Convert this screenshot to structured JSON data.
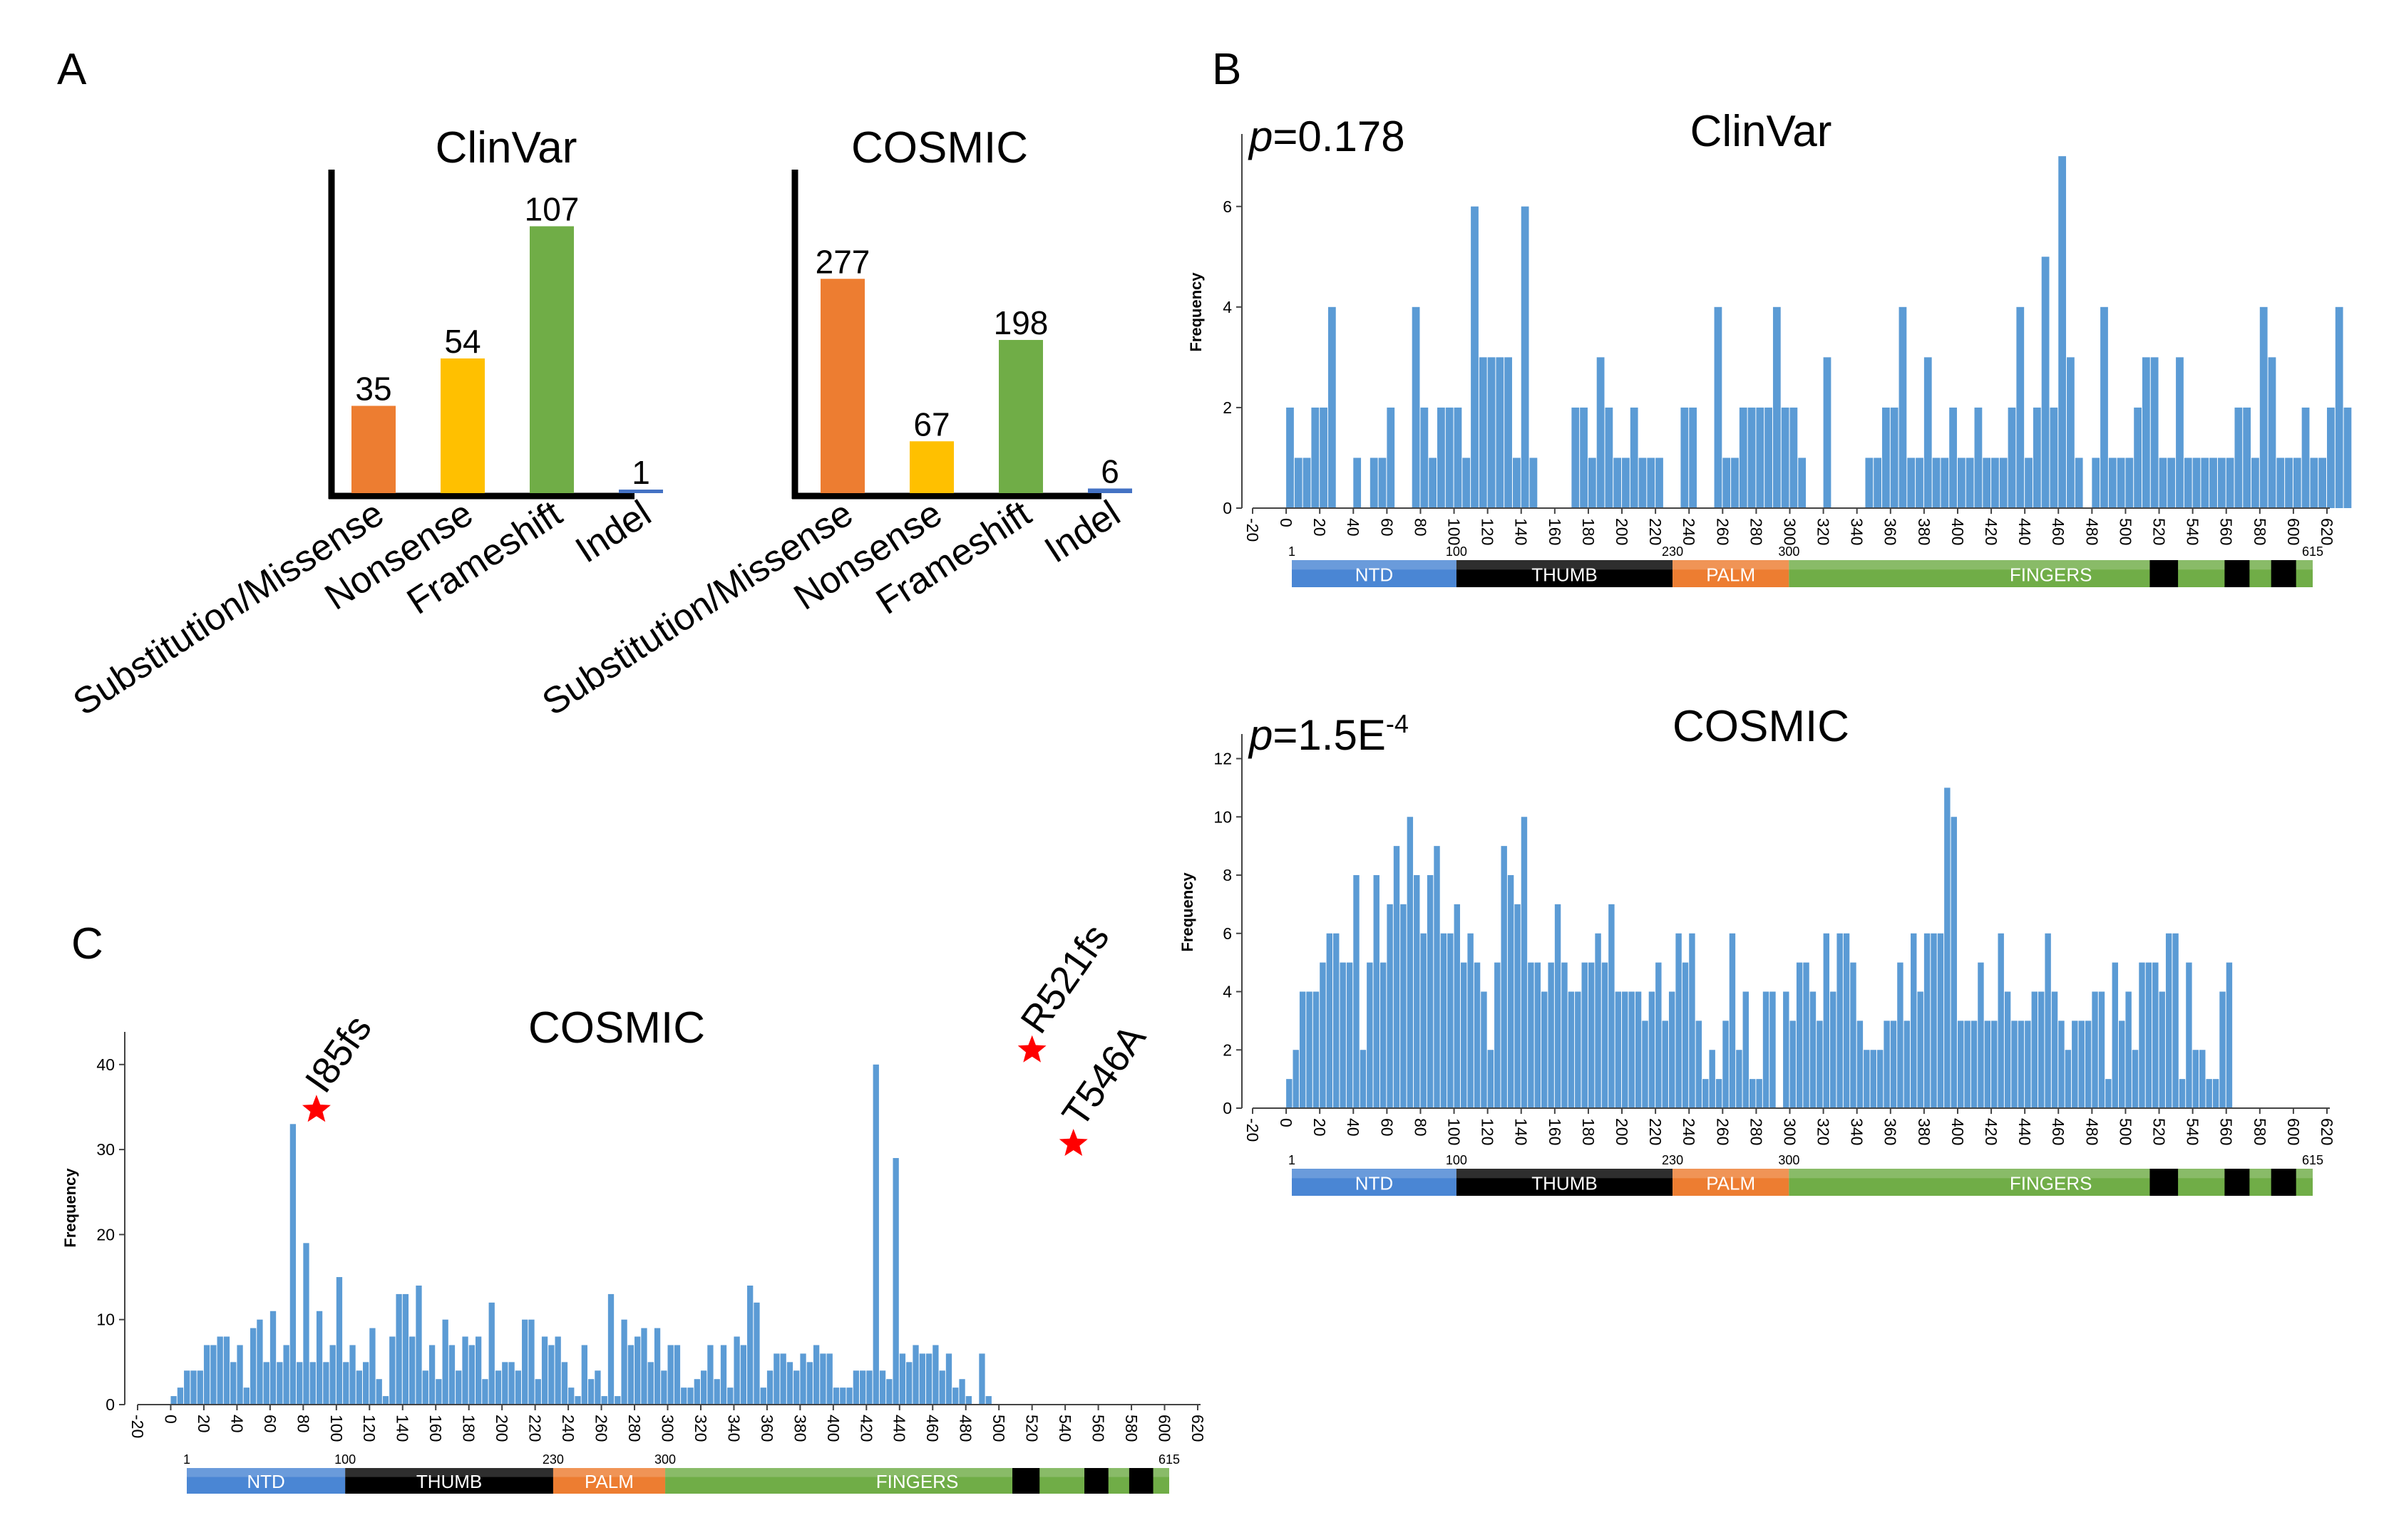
{
  "colors": {
    "bar_blue": "#5b9bd5",
    "substitution": "#ed7d31",
    "nonsense": "#ffc000",
    "frameshift": "#70ad47",
    "indel": "#4472c4",
    "domain_ntd": "#4a86d4",
    "domain_thumb": "#000000",
    "domain_palm": "#ed7d31",
    "domain_fingers": "#70ad47",
    "star": "#ff0000"
  },
  "panel_labels": {
    "a": "A",
    "b": "B",
    "c": "C"
  },
  "domain_bar": {
    "segments": [
      {
        "name": "NTD",
        "start": 1,
        "end": 100,
        "color": "#4a86d4"
      },
      {
        "name": "THUMB",
        "start": 100,
        "end": 230,
        "color": "#000000"
      },
      {
        "name": "PALM",
        "start": 230,
        "end": 300,
        "color": "#ed7d31"
      },
      {
        "name": "FINGERS",
        "start": 300,
        "end": 615,
        "color": "#70ad47"
      }
    ],
    "boundary_labels": [
      "1",
      "100",
      "230",
      "300",
      "615"
    ],
    "black_boxes": [
      [
        517,
        534
      ],
      [
        562,
        577
      ],
      [
        590,
        605
      ]
    ]
  },
  "chart_data": [
    {
      "id": "A-clinvar",
      "type": "bar",
      "title": "ClinVar",
      "categories": [
        "Substitution/Missense",
        "Nonsense",
        "Frameshift",
        "Indel"
      ],
      "values": [
        35,
        54,
        107,
        1
      ],
      "data_labels": [
        "35",
        "54",
        "107",
        "1"
      ],
      "colors": [
        "#ed7d31",
        "#ffc000",
        "#70ad47",
        "#4472c4"
      ],
      "ylim": [
        0,
        140
      ]
    },
    {
      "id": "A-cosmic",
      "type": "bar",
      "title": "COSMIC",
      "categories": [
        "Substitution/Missense",
        "Nonsense",
        "Frameshift",
        "Indel"
      ],
      "values": [
        277,
        67,
        198,
        6
      ],
      "data_labels": [
        "277",
        "67",
        "198",
        "6"
      ],
      "colors": [
        "#ed7d31",
        "#ffc000",
        "#70ad47",
        "#4472c4"
      ],
      "ylim": [
        0,
        350
      ]
    },
    {
      "id": "B-clinvar",
      "type": "bar",
      "title": "ClinVar",
      "p_value": {
        "italic": "p",
        "main": "=0.178",
        "sup": ""
      },
      "xlabel": "",
      "ylabel": "Frequency",
      "x_ticks": [
        "-20",
        "0",
        "20",
        "40",
        "60",
        "80",
        "100",
        "120",
        "140",
        "160",
        "180",
        "200",
        "220",
        "240",
        "260",
        "280",
        "300",
        "320",
        "340",
        "360",
        "380",
        "400",
        "420",
        "440",
        "460",
        "480",
        "500",
        "520",
        "540",
        "560",
        "580",
        "600",
        "620"
      ],
      "y_ticks": [
        "0",
        "2",
        "4",
        "6"
      ],
      "xlim": [
        -20,
        620
      ],
      "ylim": [
        0,
        7.3
      ],
      "bin_width": 5,
      "bin_start": 0,
      "values": [
        2,
        1,
        1,
        2,
        2,
        4,
        0,
        0,
        1,
        0,
        1,
        1,
        2,
        0,
        0,
        4,
        2,
        1,
        2,
        2,
        2,
        1,
        6,
        3,
        3,
        3,
        3,
        1,
        6,
        1,
        0,
        0,
        0,
        0,
        2,
        2,
        1,
        3,
        2,
        1,
        1,
        2,
        1,
        1,
        1,
        0,
        0,
        2,
        2,
        0,
        0,
        4,
        1,
        1,
        2,
        2,
        2,
        2,
        4,
        2,
        2,
        1,
        0,
        0,
        3,
        0,
        0,
        0,
        0,
        1,
        1,
        2,
        2,
        4,
        1,
        1,
        3,
        1,
        1,
        2,
        1,
        1,
        2,
        1,
        1,
        1,
        2,
        4,
        1,
        2,
        5,
        2,
        7,
        3,
        1,
        0,
        1,
        4,
        1,
        1,
        1,
        2,
        3,
        3,
        1,
        1,
        3,
        1,
        1,
        1,
        1,
        1,
        1,
        2,
        2,
        1,
        4,
        3,
        1,
        1,
        1,
        2,
        1,
        1,
        2,
        4,
        2,
        0,
        0,
        0,
        0,
        0,
        0,
        0
      ]
    },
    {
      "id": "B-cosmic",
      "type": "bar",
      "title": "COSMIC",
      "p_value": {
        "italic": "p",
        "main": "=1.5E",
        "sup": "-4"
      },
      "xlabel": "",
      "ylabel": "Frequency",
      "x_ticks": [
        "-20",
        "0",
        "20",
        "40",
        "60",
        "80",
        "100",
        "120",
        "140",
        "160",
        "180",
        "200",
        "220",
        "240",
        "260",
        "280",
        "300",
        "320",
        "340",
        "360",
        "380",
        "400",
        "420",
        "440",
        "460",
        "480",
        "500",
        "520",
        "540",
        "560",
        "580",
        "600",
        "620"
      ],
      "y_ticks": [
        "0",
        "2",
        "4",
        "6",
        "8",
        "10",
        "12"
      ],
      "xlim": [
        -20,
        620
      ],
      "ylim": [
        0,
        12.6
      ],
      "bin_width": 4,
      "bin_start": 0,
      "values": [
        1,
        2,
        4,
        4,
        4,
        5,
        6,
        6,
        5,
        5,
        8,
        2,
        5,
        8,
        5,
        7,
        9,
        7,
        10,
        8,
        6,
        8,
        9,
        6,
        6,
        7,
        5,
        6,
        5,
        4,
        2,
        5,
        9,
        8,
        7,
        10,
        5,
        5,
        4,
        5,
        7,
        5,
        4,
        4,
        5,
        5,
        6,
        5,
        7,
        4,
        4,
        4,
        4,
        3,
        4,
        5,
        3,
        4,
        6,
        5,
        6,
        3,
        1,
        2,
        1,
        3,
        6,
        2,
        4,
        1,
        1,
        4,
        4,
        0,
        4,
        3,
        5,
        5,
        4,
        3,
        6,
        4,
        6,
        6,
        5,
        3,
        2,
        2,
        2,
        3,
        3,
        5,
        3,
        6,
        4,
        6,
        6,
        6,
        11,
        10,
        3,
        3,
        3,
        5,
        3,
        3,
        6,
        4,
        3,
        3,
        3,
        4,
        4,
        6,
        4,
        3,
        2,
        3,
        3,
        3,
        4,
        4,
        1,
        5,
        3,
        4,
        2,
        5,
        5,
        5,
        4,
        6,
        6,
        1,
        5,
        2,
        2,
        1,
        1,
        4,
        5,
        0,
        0
      ]
    },
    {
      "id": "C-cosmic",
      "type": "bar",
      "title": "COSMIC",
      "xlabel": "",
      "ylabel": "Frequency",
      "x_ticks": [
        "-20",
        "0",
        "20",
        "40",
        "60",
        "80",
        "100",
        "120",
        "140",
        "160",
        "180",
        "200",
        "220",
        "240",
        "260",
        "280",
        "300",
        "320",
        "340",
        "360",
        "380",
        "400",
        "420",
        "440",
        "460",
        "480",
        "500",
        "520",
        "540",
        "560",
        "580",
        "600",
        "620"
      ],
      "y_ticks": [
        "0",
        "10",
        "20",
        "30",
        "40"
      ],
      "xlim": [
        -20,
        620
      ],
      "ylim": [
        0,
        43
      ],
      "bin_width": 4,
      "bin_start": 0,
      "values": [
        1,
        2,
        4,
        4,
        4,
        7,
        7,
        8,
        8,
        5,
        7,
        2,
        9,
        10,
        5,
        11,
        5,
        7,
        33,
        5,
        19,
        5,
        11,
        5,
        7,
        15,
        5,
        7,
        4,
        5,
        9,
        3,
        1,
        8,
        13,
        13,
        8,
        14,
        4,
        7,
        3,
        10,
        7,
        4,
        8,
        7,
        8,
        3,
        12,
        4,
        5,
        5,
        4,
        10,
        10,
        3,
        8,
        7,
        8,
        5,
        2,
        1,
        7,
        3,
        4,
        1,
        13,
        1,
        10,
        7,
        8,
        9,
        5,
        9,
        4,
        7,
        7,
        2,
        2,
        3,
        4,
        7,
        3,
        7,
        2,
        8,
        7,
        14,
        12,
        2,
        4,
        6,
        6,
        5,
        4,
        6,
        5,
        7,
        6,
        6,
        2,
        2,
        2,
        4,
        4,
        4,
        40,
        4,
        3,
        29,
        6,
        5,
        7,
        6,
        6,
        7,
        4,
        6,
        2,
        3,
        1,
        0,
        6,
        1
      ]
    }
  ],
  "annotations": {
    "c": [
      {
        "label": "I85fs",
        "x": 88,
        "y": 33
      },
      {
        "label": "R521fs",
        "x": 520,
        "y": 40
      },
      {
        "label": "T546A",
        "x": 545,
        "y": 29
      }
    ]
  }
}
